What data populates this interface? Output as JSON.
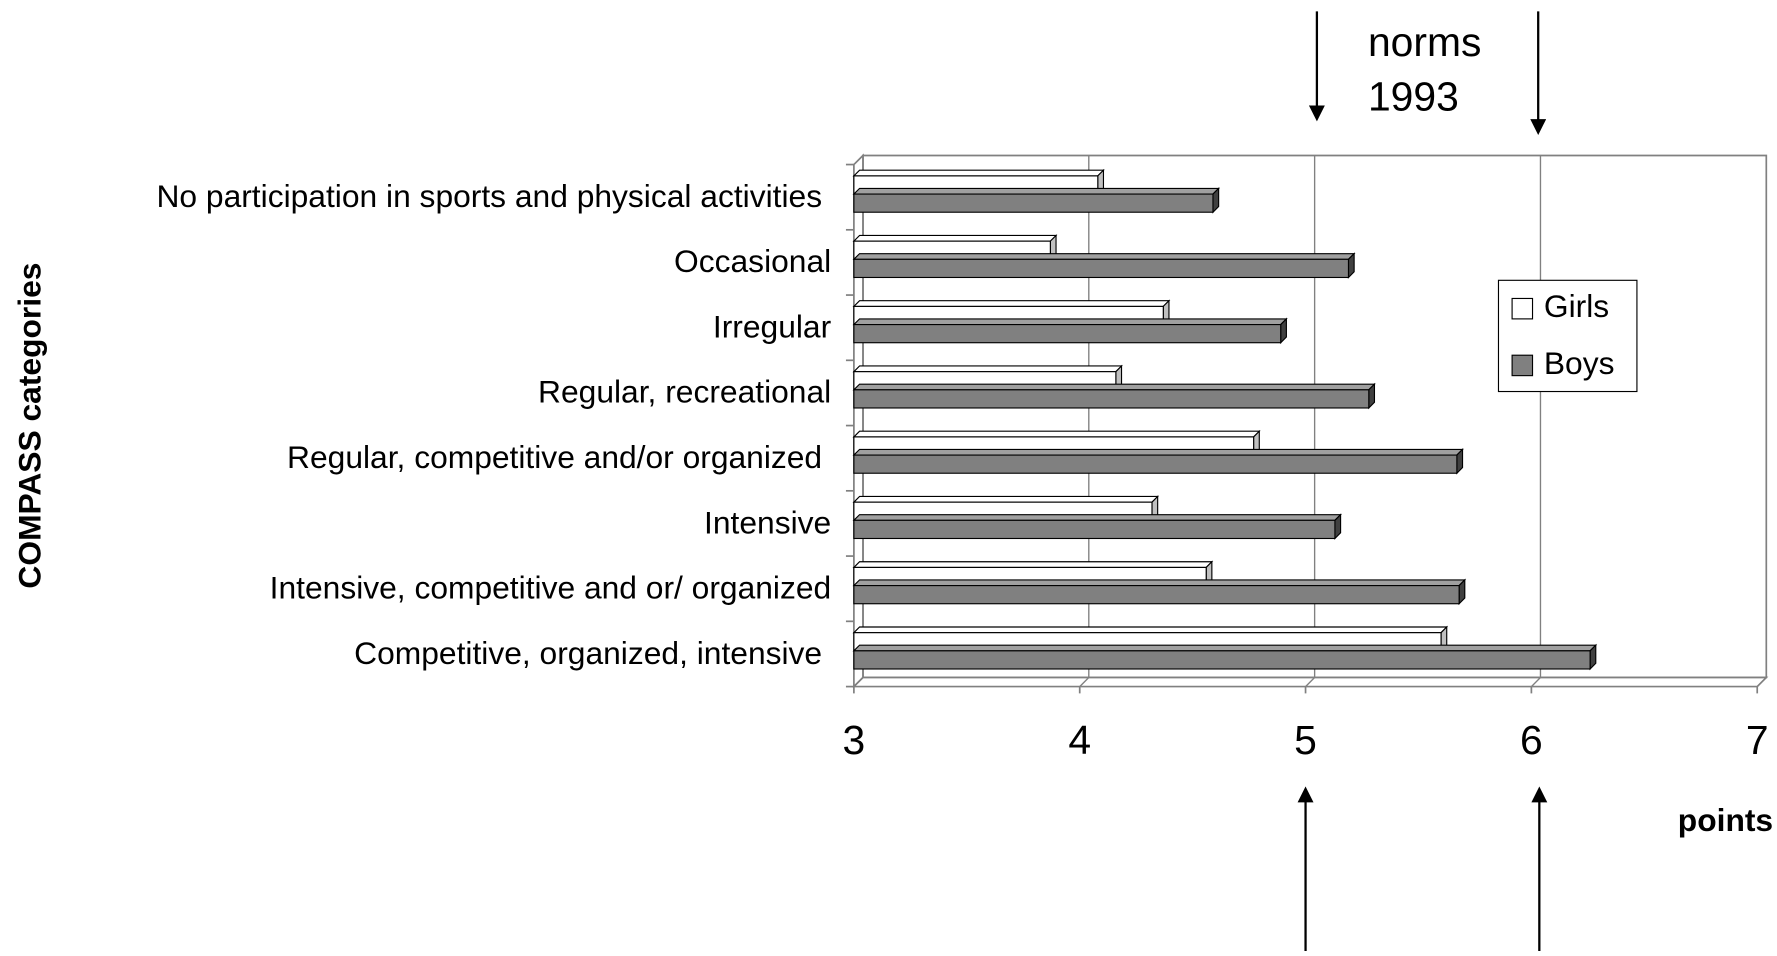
{
  "chart_data": {
    "type": "bar",
    "orientation": "horizontal",
    "categories": [
      "No participation in sports and physical activities",
      "Occasional",
      "Irregular",
      "Regular, recreational",
      "Regular, competitive and/or organized",
      "Intensive",
      "Intensive, competitive and or/ organized",
      "Competitive, organized, intensive"
    ],
    "series": [
      {
        "name": "Girls",
        "color": "#ffffff",
        "values": [
          4.08,
          3.87,
          4.37,
          4.16,
          4.77,
          4.32,
          4.56,
          5.6
        ]
      },
      {
        "name": "Boys",
        "color": "#808080",
        "values": [
          4.59,
          5.19,
          4.89,
          5.28,
          5.67,
          5.13,
          5.68,
          6.26
        ]
      }
    ],
    "xlim": [
      3,
      7
    ],
    "xticks": [
      3,
      4,
      5,
      6,
      7
    ],
    "grid": true,
    "x_label": "points",
    "y_label": "COMPASS categories",
    "annotation": [
      "norms",
      "1993"
    ],
    "legend": "right"
  }
}
